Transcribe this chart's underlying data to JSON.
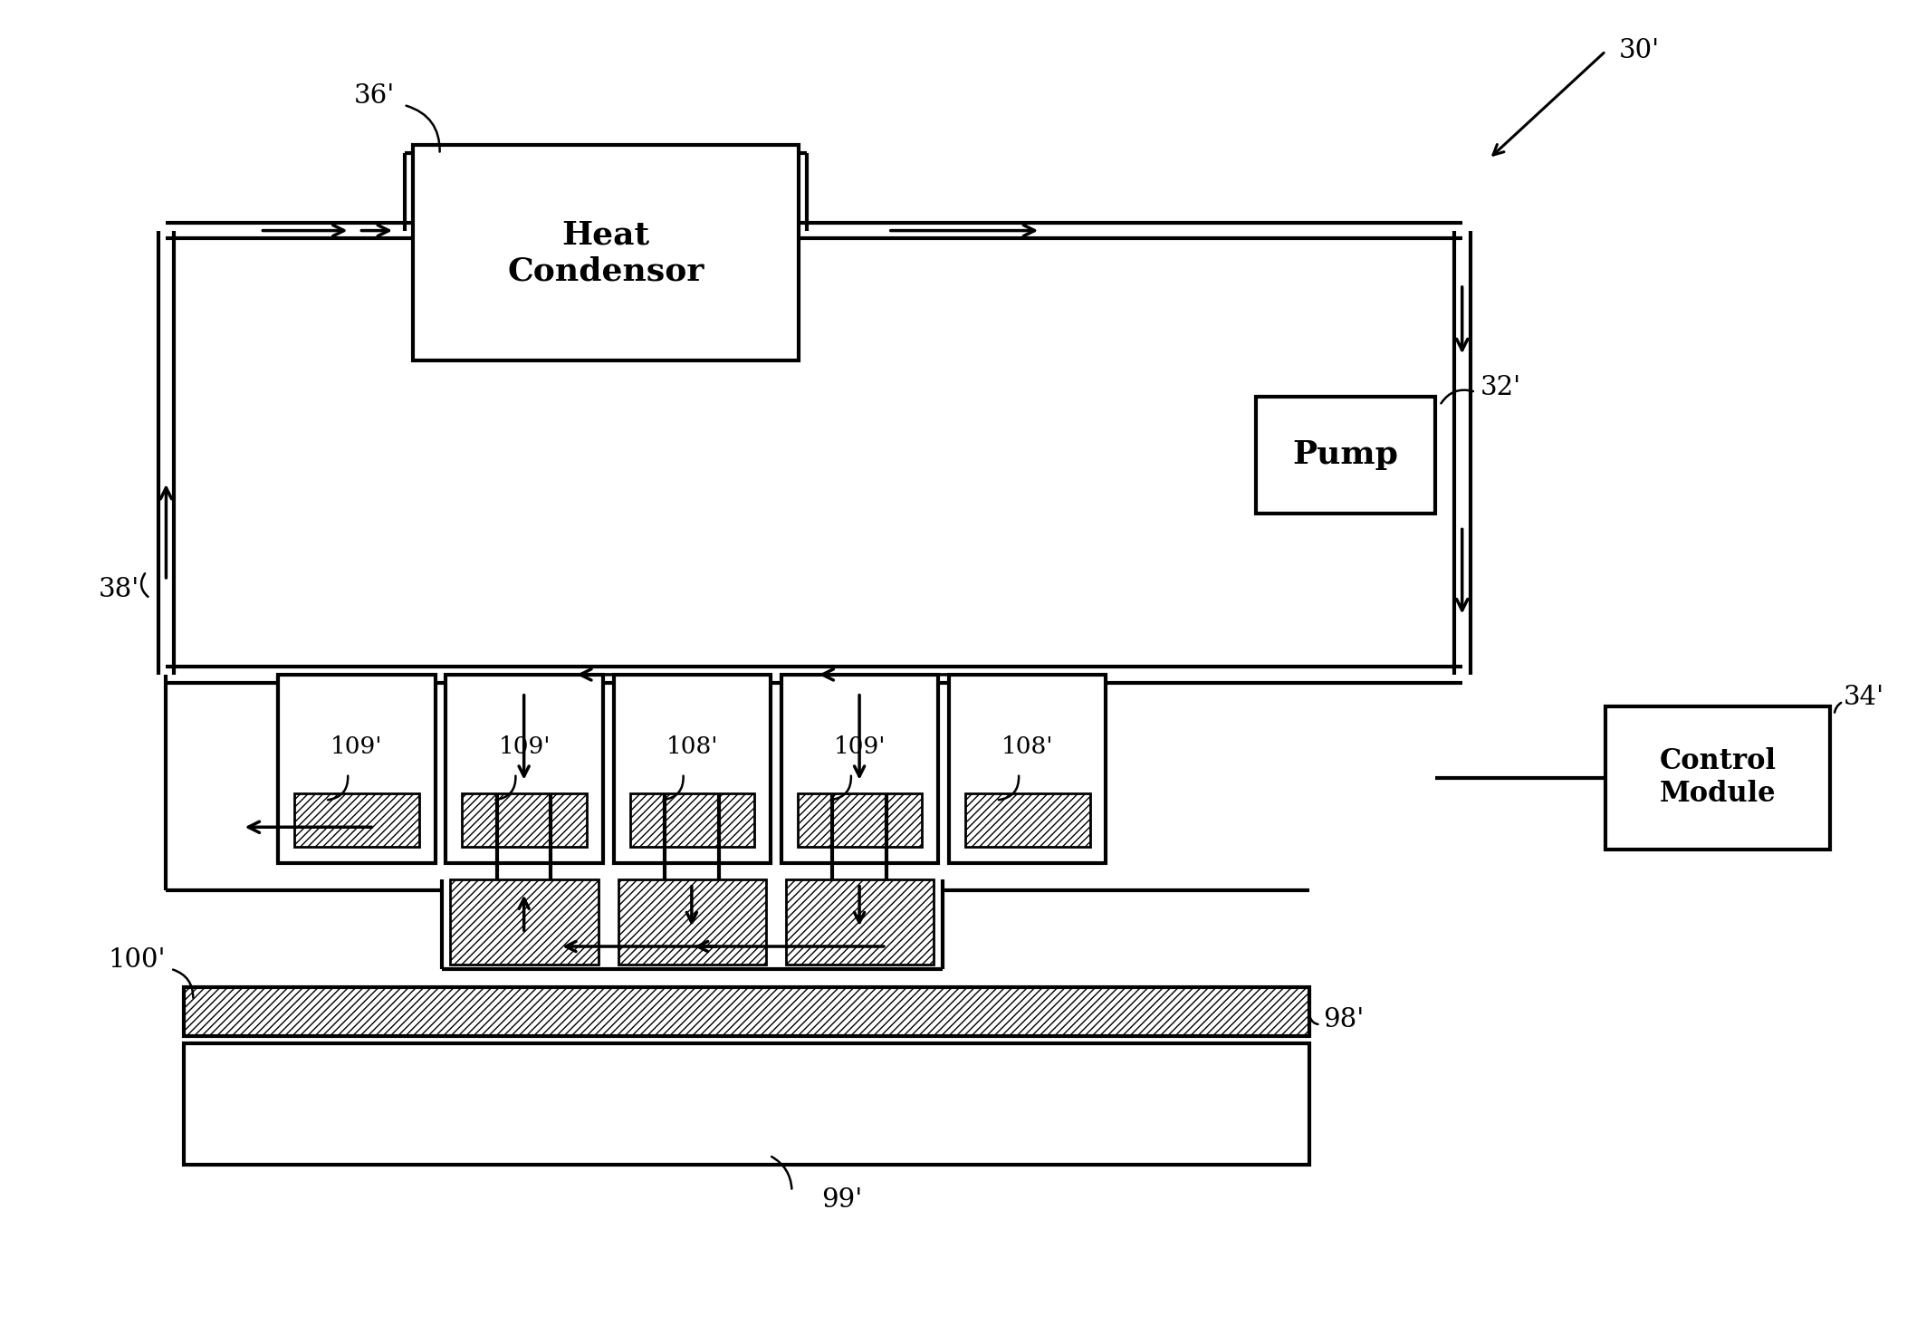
{
  "bg_color": "#ffffff",
  "line_color": "#000000",
  "labels": {
    "30p": "30'",
    "32p": "32'",
    "34p": "34'",
    "36p": "36'",
    "38p": "38'",
    "98p": "98'",
    "99p": "99'",
    "100p": "100'",
    "108p": "108'",
    "109p": "109'",
    "heat_condenser": "Heat\nCondensor",
    "pump": "Pump",
    "control_module": "Control\nModule"
  },
  "fig_width": 21.27,
  "fig_height": 14.63
}
